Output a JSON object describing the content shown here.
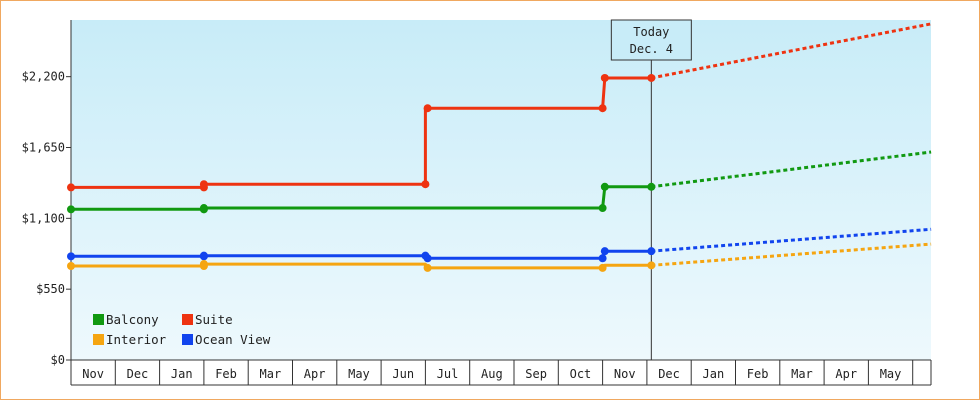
{
  "chart_data": {
    "type": "line",
    "title": "",
    "xlabel": "",
    "ylabel": "",
    "ylim": [
      0,
      2640
    ],
    "y_ticks": [
      {
        "value": 0,
        "label": "$0"
      },
      {
        "value": 550,
        "label": "$550"
      },
      {
        "value": 1100,
        "label": "$1,100"
      },
      {
        "value": 1650,
        "label": "$1,650"
      },
      {
        "value": 2200,
        "label": "$2,200"
      }
    ],
    "x_axis": {
      "months": [
        "Nov",
        "Dec",
        "Jan",
        "Feb",
        "Mar",
        "Apr",
        "May",
        "Jun",
        "Jul",
        "Aug",
        "Sep",
        "Oct",
        "Nov",
        "Dec",
        "Jan",
        "Feb",
        "Mar",
        "Apr",
        "May"
      ],
      "start": "Nov",
      "end": "Jun"
    },
    "today_marker": {
      "line1": "Today",
      "line2": "Dec. 4",
      "x": 13.1
    },
    "legend_position": "bottom-left",
    "series": [
      {
        "name": "Suite",
        "color": "#ee3311",
        "points": [
          [
            0,
            1340
          ],
          [
            3.0,
            1340
          ],
          [
            3.0,
            1365
          ],
          [
            8.0,
            1365
          ],
          [
            8.0,
            1955
          ],
          [
            12.0,
            1955
          ],
          [
            12.05,
            2190
          ],
          [
            13.1,
            2190
          ]
        ],
        "markers": [
          [
            0,
            1340
          ],
          [
            3.0,
            1340
          ],
          [
            3.0,
            1365
          ],
          [
            8.0,
            1365
          ],
          [
            8.05,
            1955
          ],
          [
            12.0,
            1955
          ],
          [
            12.05,
            2190
          ],
          [
            13.1,
            2190
          ]
        ],
        "forecast": [
          [
            13.1,
            2190
          ],
          [
            19.5,
            2610
          ]
        ]
      },
      {
        "name": "Balcony",
        "color": "#119911",
        "points": [
          [
            0,
            1170
          ],
          [
            3.0,
            1170
          ],
          [
            3.0,
            1180
          ],
          [
            12.0,
            1180
          ],
          [
            12.05,
            1345
          ],
          [
            13.1,
            1345
          ]
        ],
        "markers": [
          [
            0,
            1170
          ],
          [
            3.0,
            1170
          ],
          [
            3.0,
            1180
          ],
          [
            12.0,
            1180
          ],
          [
            12.05,
            1345
          ],
          [
            13.1,
            1345
          ]
        ],
        "forecast": [
          [
            13.1,
            1345
          ],
          [
            19.5,
            1615
          ]
        ]
      },
      {
        "name": "Ocean View",
        "color": "#1144ee",
        "points": [
          [
            0,
            805
          ],
          [
            3.0,
            805
          ],
          [
            3.0,
            810
          ],
          [
            8.0,
            810
          ],
          [
            8.0,
            790
          ],
          [
            12.0,
            790
          ],
          [
            12.05,
            845
          ],
          [
            13.1,
            845
          ]
        ],
        "markers": [
          [
            0,
            805
          ],
          [
            3.0,
            805
          ],
          [
            3.0,
            810
          ],
          [
            8.0,
            810
          ],
          [
            8.05,
            790
          ],
          [
            12.0,
            790
          ],
          [
            12.05,
            845
          ],
          [
            13.1,
            845
          ]
        ],
        "forecast": [
          [
            13.1,
            845
          ],
          [
            19.5,
            1015
          ]
        ]
      },
      {
        "name": "Interior",
        "color": "#f5a511",
        "points": [
          [
            0,
            730
          ],
          [
            3.0,
            730
          ],
          [
            3.0,
            745
          ],
          [
            8.0,
            745
          ],
          [
            8.0,
            715
          ],
          [
            12.0,
            715
          ],
          [
            12.05,
            735
          ],
          [
            13.1,
            735
          ]
        ],
        "markers": [
          [
            0,
            730
          ],
          [
            3.0,
            730
          ],
          [
            3.0,
            745
          ],
          [
            8.05,
            715
          ],
          [
            12.0,
            715
          ],
          [
            13.1,
            735
          ]
        ],
        "forecast": [
          [
            13.1,
            735
          ],
          [
            19.5,
            900
          ]
        ]
      }
    ],
    "legend": [
      {
        "name": "Balcony",
        "color": "#119911"
      },
      {
        "name": "Suite",
        "color": "#ee3311"
      },
      {
        "name": "Interior",
        "color": "#f5a511"
      },
      {
        "name": "Ocean View",
        "color": "#1144ee"
      }
    ]
  }
}
